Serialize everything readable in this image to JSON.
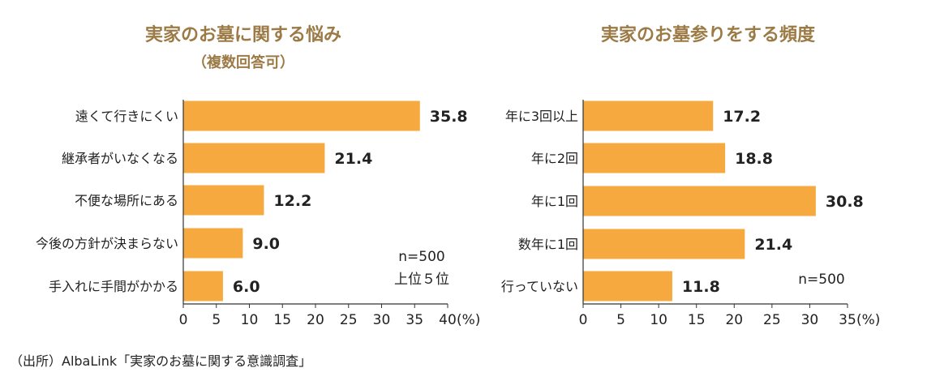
{
  "chart_data": [
    {
      "type": "bar",
      "orientation": "horizontal",
      "title": "実家のお墓に関する悩み",
      "subtitle": "（複数回答可）",
      "categories": [
        "遠くて行きにくい",
        "継承者がいなくなる",
        "不便な場所にある",
        "今後の方針が決まらない",
        "手入れに手間がかかる"
      ],
      "values": [
        35.8,
        21.4,
        12.2,
        9.0,
        6.0
      ],
      "value_labels": [
        "35.8",
        "21.4",
        "12.2",
        "9.0",
        "6.0"
      ],
      "xlim": [
        0,
        40
      ],
      "xticks": [
        0,
        5,
        10,
        15,
        20,
        25,
        30,
        35,
        40
      ],
      "unit_label": "(%)",
      "notes": [
        "n=500",
        "上位５位"
      ],
      "bar_color": "#f5a93e"
    },
    {
      "type": "bar",
      "orientation": "horizontal",
      "title": "実家のお墓参りをする頻度",
      "categories": [
        "年に3回以上",
        "年に2回",
        "年に1回",
        "数年に1回",
        "行っていない"
      ],
      "values": [
        17.2,
        18.8,
        30.8,
        21.4,
        11.8
      ],
      "value_labels": [
        "17.2",
        "18.8",
        "30.8",
        "21.4",
        "11.8"
      ],
      "xlim": [
        0,
        35
      ],
      "xticks": [
        0,
        5,
        10,
        15,
        20,
        25,
        30,
        35
      ],
      "unit_label": "(%)",
      "notes": [
        "n=500"
      ],
      "bar_color": "#f5a93e"
    }
  ],
  "source": "（出所）AlbaLink「実家のお墓に関する意識調査」"
}
